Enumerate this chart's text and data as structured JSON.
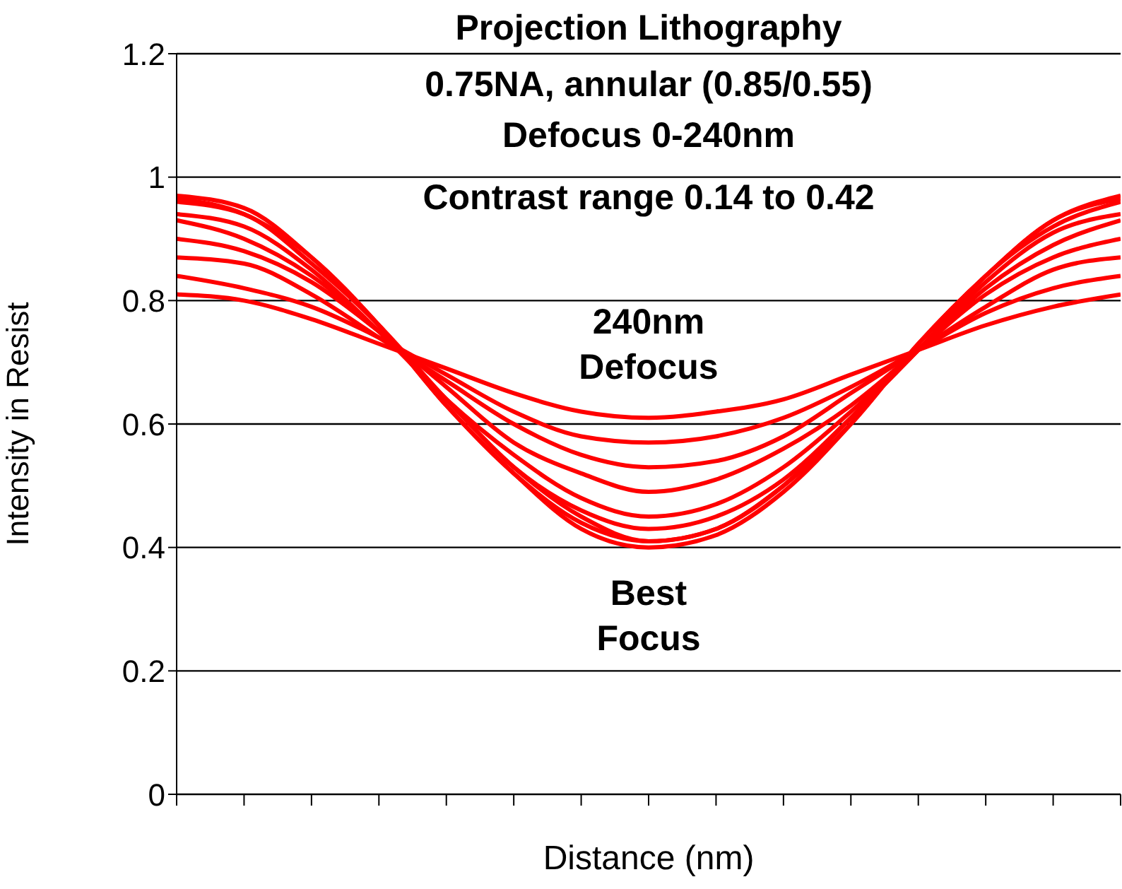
{
  "chart_data": {
    "type": "line",
    "title": "Projection Lithography",
    "annotations": [
      "0.75NA, annular (0.85/0.55)",
      "Defocus 0-240nm",
      "Contrast range 0.14 to 0.42",
      "240nm\nDefocus",
      "Best\nFocus"
    ],
    "xlabel": "Distance (nm)",
    "ylabel": "Intensity in Resist",
    "categories": [
      null,
      null,
      null,
      null,
      null,
      null,
      null,
      null,
      null,
      null,
      null,
      null,
      null,
      null,
      null
    ],
    "series": [
      {
        "color": "#ff0000",
        "values": [
          0.97,
          0.95,
          0.87,
          0.76,
          0.63,
          0.52,
          0.43,
          0.4,
          0.42,
          0.49,
          0.6,
          0.73,
          0.84,
          0.93,
          0.97
        ]
      },
      {
        "color": "#ff0000",
        "values": [
          0.965,
          0.94,
          0.87,
          0.76,
          0.63,
          0.52,
          0.44,
          0.41,
          0.43,
          0.5,
          0.6,
          0.73,
          0.84,
          0.93,
          0.965
        ]
      },
      {
        "color": "#ff0000",
        "values": [
          0.96,
          0.94,
          0.86,
          0.76,
          0.64,
          0.53,
          0.45,
          0.41,
          0.43,
          0.5,
          0.61,
          0.72,
          0.84,
          0.92,
          0.96
        ]
      },
      {
        "color": "#ff0000",
        "values": [
          0.94,
          0.92,
          0.85,
          0.75,
          0.64,
          0.53,
          0.46,
          0.43,
          0.45,
          0.51,
          0.61,
          0.72,
          0.83,
          0.91,
          0.94
        ]
      },
      {
        "color": "#ff0000",
        "values": [
          0.93,
          0.9,
          0.84,
          0.75,
          0.64,
          0.55,
          0.48,
          0.45,
          0.47,
          0.53,
          0.62,
          0.72,
          0.82,
          0.89,
          0.93
        ]
      },
      {
        "color": "#ff0000",
        "values": [
          0.9,
          0.88,
          0.83,
          0.75,
          0.66,
          0.57,
          0.52,
          0.49,
          0.51,
          0.56,
          0.63,
          0.72,
          0.81,
          0.87,
          0.9
        ]
      },
      {
        "color": "#ff0000",
        "values": [
          0.87,
          0.86,
          0.81,
          0.74,
          0.67,
          0.6,
          0.55,
          0.53,
          0.54,
          0.58,
          0.65,
          0.72,
          0.79,
          0.85,
          0.87
        ]
      },
      {
        "color": "#ff0000",
        "values": [
          0.84,
          0.82,
          0.79,
          0.74,
          0.68,
          0.62,
          0.58,
          0.57,
          0.58,
          0.61,
          0.66,
          0.72,
          0.78,
          0.82,
          0.84
        ]
      },
      {
        "color": "#ff0000",
        "values": [
          0.81,
          0.8,
          0.77,
          0.73,
          0.69,
          0.65,
          0.62,
          0.61,
          0.62,
          0.64,
          0.68,
          0.72,
          0.76,
          0.79,
          0.81
        ]
      }
    ],
    "ylim": [
      0,
      1.2
    ],
    "yticks": [
      0,
      0.2,
      0.4,
      0.6,
      0.8,
      1,
      1.2
    ],
    "grid": "y",
    "legend": false,
    "marker": "none",
    "line_style": "solid",
    "tick_labels": "y"
  }
}
